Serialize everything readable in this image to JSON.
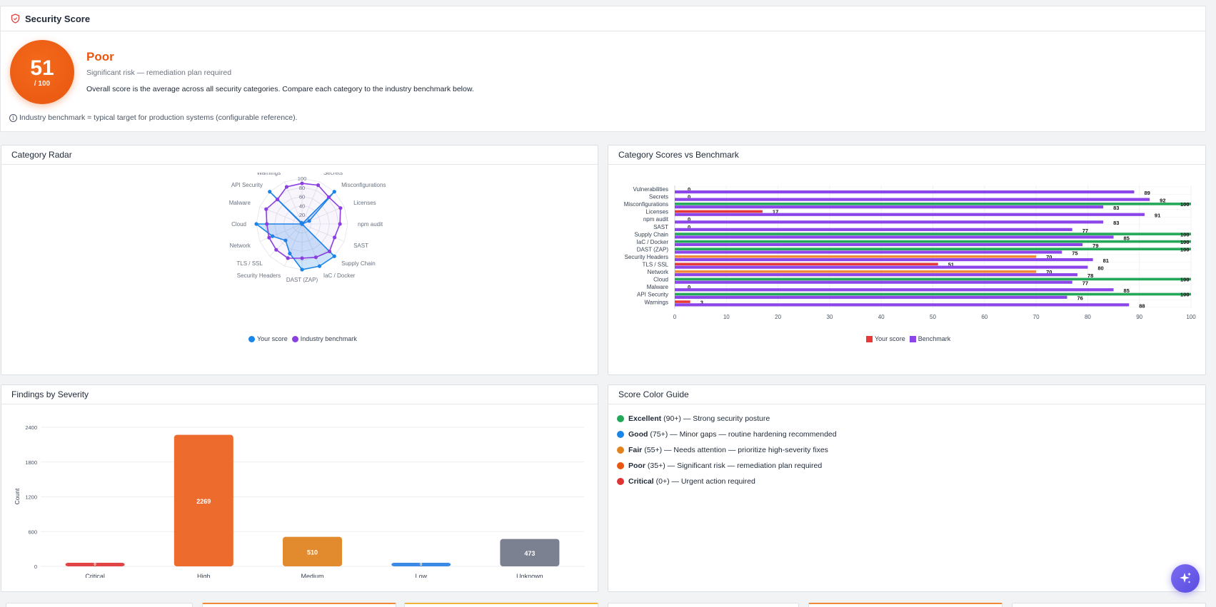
{
  "security_score": {
    "title": "Security Score",
    "icon": "shield-icon",
    "score": "51",
    "max": "/ 100",
    "rating": "Poor",
    "subtitle": "Significant risk — remediation plan required",
    "description": "Overall score is the average across all security categories. Compare each category to the industry benchmark below.",
    "note": "Industry benchmark = typical target for production systems (configurable reference).",
    "colors": {
      "score": "#e9560f"
    }
  },
  "radar": {
    "title": "Category Radar",
    "legend": {
      "your_score": "Your score",
      "benchmark": "Industry benchmark"
    },
    "colors": {
      "your_score": "#1a85e8",
      "benchmark": "#8b3fe0"
    }
  },
  "benchmark_chart": {
    "title": "Category Scores vs Benchmark",
    "legend": {
      "your_score": "Your score",
      "benchmark": "Benchmark"
    },
    "colors": {
      "your_score": "#e63a3a",
      "benchmark": "#8b45e8",
      "grade_good": "#22a858",
      "grade_fair": "#f08a3a"
    }
  },
  "severity_chart": {
    "title": "Findings by Severity",
    "colors": {
      "critical": "#e04444",
      "high": "#ee6b2e",
      "medium": "#e28a2e",
      "low": "#3b8ae6",
      "unknown": "#7b8190"
    }
  },
  "chart_data": [
    {
      "type": "radar",
      "title": "Category Radar",
      "categories": [
        "Vulnerabilities",
        "Secrets",
        "Misconfigurations",
        "Licenses",
        "npm audit",
        "SAST",
        "Supply Chain",
        "IaC / Docker",
        "DAST (ZAP)",
        "Security Headers",
        "TLS / SSL",
        "Network",
        "Cloud",
        "Malware",
        "API Security",
        "Warnings"
      ],
      "ticks": [
        "20",
        "40",
        "60",
        "80",
        "100"
      ],
      "rlim": [
        0,
        100
      ],
      "series": [
        {
          "name": "Your score",
          "values": [
            0,
            0,
            100,
            17,
            0,
            0,
            100,
            100,
            100,
            70,
            51,
            70,
            100,
            0,
            100,
            3
          ]
        },
        {
          "name": "Industry benchmark",
          "values": [
            89,
            92,
            83,
            91,
            83,
            77,
            85,
            79,
            75,
            81,
            80,
            78,
            77,
            85,
            76,
            88
          ]
        }
      ]
    },
    {
      "type": "bar",
      "title": "Category Scores vs Benchmark",
      "orientation": "horizontal",
      "categories": [
        "Vulnerabilities",
        "Secrets",
        "Misconfigurations",
        "Licenses",
        "npm audit",
        "SAST",
        "Supply Chain",
        "IaC / Docker",
        "DAST (ZAP)",
        "Security Headers",
        "TLS / SSL",
        "Network",
        "Cloud",
        "Malware",
        "API Security",
        "Warnings"
      ],
      "x_ticks": [
        "0",
        "10",
        "20",
        "30",
        "40",
        "50",
        "60",
        "70",
        "80",
        "90",
        "100"
      ],
      "xlim": [
        0,
        100
      ],
      "series": [
        {
          "name": "Your score",
          "values": [
            0,
            0,
            100,
            17,
            0,
            0,
            100,
            100,
            100,
            70,
            51,
            70,
            100,
            0,
            100,
            3
          ]
        },
        {
          "name": "Benchmark",
          "values": [
            89,
            92,
            83,
            91,
            83,
            77,
            85,
            79,
            75,
            81,
            80,
            78,
            77,
            85,
            76,
            88
          ]
        }
      ]
    },
    {
      "type": "bar",
      "title": "Findings by Severity",
      "ylabel": "Count",
      "categories": [
        "Critical",
        "High",
        "Medium",
        "Low",
        "Unknown"
      ],
      "values": [
        0,
        2269,
        510,
        0,
        473
      ],
      "value_labels": [
        "0",
        "2269",
        "510",
        "0",
        "473"
      ],
      "y_ticks": [
        "0",
        "600",
        "1200",
        "1800",
        "2400"
      ],
      "ylim": [
        0,
        2400
      ]
    }
  ],
  "color_guide": {
    "title": "Score Color Guide",
    "items": [
      {
        "name": "Excellent",
        "range": "(90+)",
        "text": "— Strong security posture",
        "color": "#22a858"
      },
      {
        "name": "Good",
        "range": "(75+)",
        "text": "— Minor gaps — routine hardening recommended",
        "color": "#1a85e8"
      },
      {
        "name": "Fair",
        "range": "(55+)",
        "text": "— Needs attention — prioritize high-severity fixes",
        "color": "#e2831e"
      },
      {
        "name": "Poor",
        "range": "(35+)",
        "text": "— Significant risk — remediation plan required",
        "color": "#e9560f"
      },
      {
        "name": "Critical",
        "range": "(0+)",
        "text": "— Urgent action required",
        "color": "#e03434"
      }
    ]
  },
  "assistant_button": {
    "icon": "sparkle-icon"
  }
}
